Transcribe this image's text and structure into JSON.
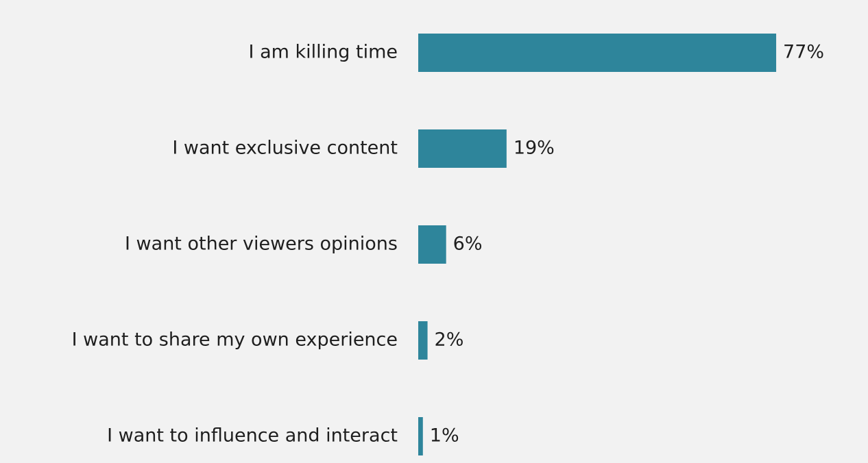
{
  "chart_data": {
    "type": "bar",
    "orientation": "horizontal",
    "categories": [
      "I am killing time",
      "I want exclusive content",
      "I want other viewers opinions",
      "I want to share my own experience",
      "I want to influence and interact"
    ],
    "values": [
      77,
      19,
      6,
      2,
      1
    ],
    "value_labels": [
      "77%",
      "19%",
      "6%",
      "2%",
      "1%"
    ],
    "color": "#2e859b"
  }
}
